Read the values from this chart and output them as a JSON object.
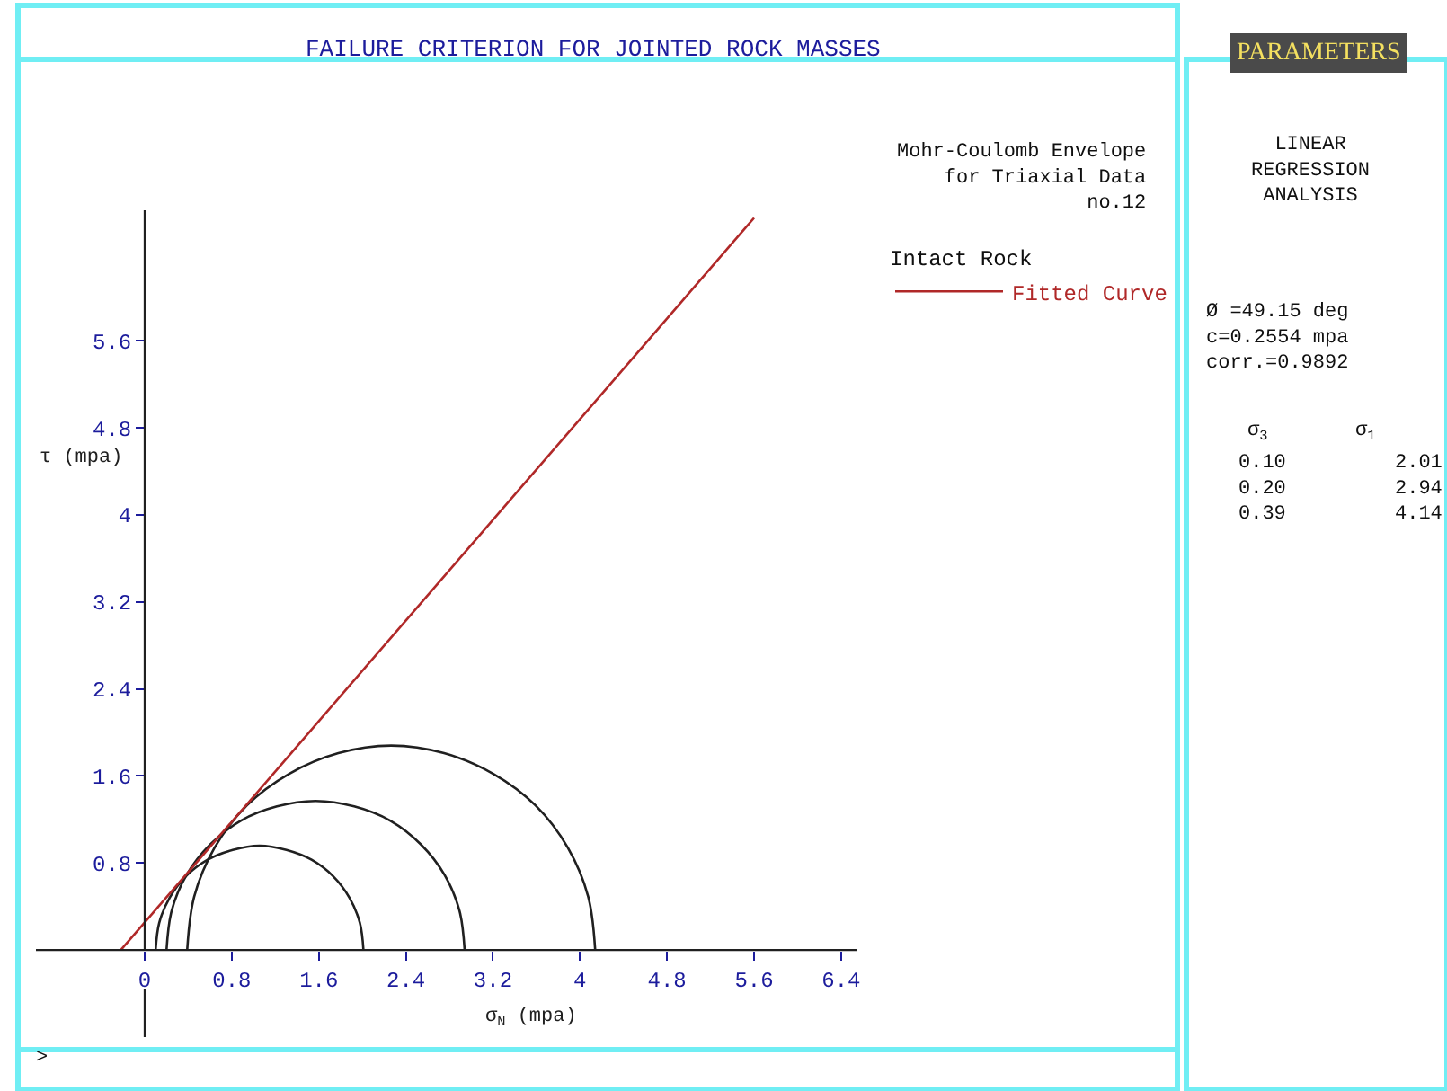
{
  "chart_data": {
    "type": "line",
    "title": "FAILURE CRITERION FOR JOINTED ROCK MASSES",
    "xlabel": "σ$_{N}$ (mpa)",
    "ylabel": "τ (mpa)",
    "legend_title": "Intact Rock",
    "legend": "top right",
    "series": [
      {
        "color": "#202020",
        "x": [
          2.01,
          1.977,
          1.882,
          1.73,
          1.533,
          1.302,
          1.055,
          0.808,
          0.578,
          0.38,
          0.228,
          0.133,
          0.1
        ],
        "values": [
          0,
          0.25,
          0.48,
          0.68,
          0.83,
          0.92,
          0.96,
          0.92,
          0.83,
          0.68,
          0.48,
          0.25,
          0
        ]
      },
      {
        "color": "#202020",
        "x": [
          2.94,
          2.893,
          2.756,
          2.539,
          2.255,
          1.925,
          1.57,
          1.215,
          0.885,
          0.601,
          0.384,
          0.247,
          0.2
        ],
        "values": [
          0,
          0.36,
          0.69,
          0.97,
          1.19,
          1.32,
          1.37,
          1.32,
          1.19,
          0.97,
          0.69,
          0.36,
          0
        ]
      },
      {
        "color": "#202020",
        "x": [
          4.14,
          4.076,
          3.889,
          3.591,
          3.203,
          2.751,
          2.265,
          1.779,
          1.327,
          0.939,
          0.641,
          0.454,
          0.39
        ],
        "values": [
          0,
          0.49,
          0.94,
          1.33,
          1.62,
          1.81,
          1.88,
          1.81,
          1.62,
          1.33,
          0.94,
          0.49,
          0
        ]
      },
      {
        "name": "Fitted Curve",
        "color": "#b02828",
        "x": [
          -0.22,
          5.6
        ],
        "values": [
          0,
          6.73
        ]
      }
    ],
    "xlim": [
      -1.0,
      6.55
    ],
    "ylim": [
      -0.8,
      6.8
    ],
    "xticks": [
      0,
      0.8,
      1.6,
      2.4,
      3.2,
      4,
      4.8,
      5.6,
      6.4
    ],
    "yticks": [
      0.8,
      1.6,
      2.4,
      3.2,
      4,
      4.8,
      5.6
    ],
    "annotations": [
      "Mohr-Coulomb Envelope\nfor Triaxial Data\nno.12",
      "PARAMETERS",
      "LINEAR\nREGRESSION\nANALYSIS",
      "Ø =49.15 deg\nc=0.2554 mpa\ncorr.=0.9892",
      "σ$_{3}$",
      "σ$_{1}$",
      "0.10\n0.20\n0.39",
      "2.01\n2.94\n4.14",
      ">"
    ]
  }
}
